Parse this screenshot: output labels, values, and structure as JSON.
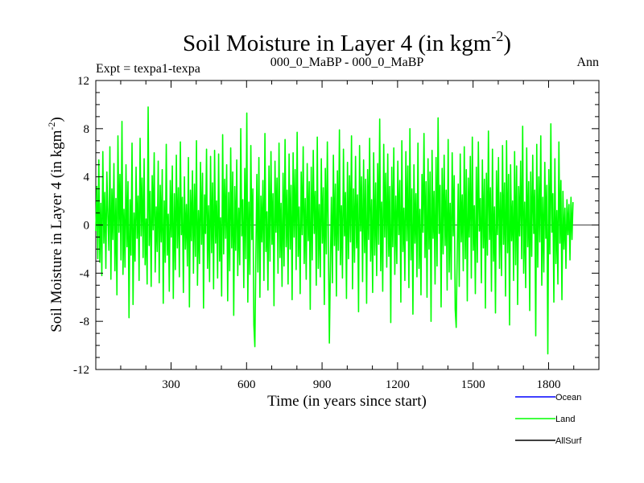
{
  "chart_data": {
    "type": "line",
    "title": "Soil Moisture in Layer 4 (in kgm",
    "title_superscript": "-2",
    "title_close": ")",
    "subtitle_left": "Expt = texpa1-texpa",
    "subtitle_center": "000_0_MaBP - 000_0_MaBP",
    "subtitle_right": "Ann",
    "xlabel": "Time (in years since start)",
    "ylabel": "Soil Moisture in Layer 4 (in kgm",
    "ylabel_superscript": "-2",
    "ylabel_close": ")",
    "xlim": [
      1,
      2000
    ],
    "ylim": [
      -12,
      12
    ],
    "xticks": [
      300,
      600,
      900,
      1200,
      1500,
      1800
    ],
    "yticks": [
      -12,
      -8,
      -4,
      0,
      4,
      8,
      12
    ],
    "zero_line": true,
    "grid": false,
    "legend_placement": "bottom-right",
    "series": [
      {
        "name": "Ocean",
        "color": "#0000ff",
        "values": []
      },
      {
        "name": "Land",
        "color": "#00ff00",
        "x_start": 1,
        "x_step": 4,
        "values": [
          -0.5,
          3.2,
          -2.8,
          5.4,
          -3.1,
          1.8,
          -4.2,
          6.1,
          -1.5,
          2.7,
          -3.6,
          4.4,
          0.8,
          -2.1,
          6.5,
          -4.5,
          3.0,
          -1.2,
          5.1,
          -3.8,
          2.2,
          -5.8,
          7.4,
          -0.6,
          4.2,
          -2.9,
          8.6,
          -4.1,
          1.3,
          -3.5,
          5.0,
          -1.8,
          3.6,
          -7.7,
          2.1,
          -2.5,
          6.8,
          -6.6,
          1.0,
          -3.0,
          4.8,
          -1.1,
          2.4,
          -4.6,
          7.2,
          -0.9,
          3.9,
          -2.7,
          5.5,
          -3.3,
          0.5,
          -4.9,
          9.8,
          -1.7,
          2.8,
          -5.1,
          4.1,
          -0.4,
          6.0,
          -3.9,
          1.5,
          -2.2,
          5.3,
          -4.8,
          3.3,
          -1.4,
          4.6,
          -6.5,
          2.0,
          -3.1,
          6.7,
          -2.5,
          0.9,
          -5.5,
          3.7,
          -1.0,
          4.9,
          -6.1,
          2.6,
          -3.7,
          5.8,
          -1.9,
          3.1,
          -4.3,
          6.9,
          -0.8,
          2.3,
          -5.6,
          4.0,
          -2.0,
          1.7,
          -3.4,
          5.6,
          -6.8,
          2.9,
          -1.3,
          4.5,
          -4.0,
          3.4,
          -2.6,
          7.0,
          -5.0,
          1.2,
          -3.2,
          5.2,
          -1.6,
          4.3,
          -6.9,
          2.5,
          -0.7,
          6.3,
          -3.6,
          1.6,
          -4.7,
          5.7,
          -2.3,
          3.5,
          -5.3,
          6.2,
          -1.5,
          2.0,
          -4.4,
          5.9,
          -3.0,
          0.6,
          -5.9,
          7.5,
          -2.4,
          3.8,
          -1.1,
          5.0,
          -6.3,
          2.7,
          -3.8,
          6.4,
          -1.9,
          4.4,
          -7.5,
          3.2,
          -2.1,
          5.4,
          -4.2,
          1.4,
          -3.3,
          8.0,
          -0.9,
          2.1,
          -5.2,
          4.7,
          -2.8,
          9.3,
          -6.4,
          1.9,
          -4.1,
          6.6,
          -1.2,
          3.0,
          -8.3,
          -10.1,
          -2.5,
          4.2,
          -3.9,
          5.6,
          -6.0,
          2.4,
          -1.4,
          3.7,
          -4.6,
          7.6,
          -2.2,
          1.1,
          -5.4,
          4.9,
          -3.0,
          6.1,
          -1.6,
          2.6,
          -6.7,
          5.3,
          -0.6,
          3.9,
          -4.0,
          6.8,
          -2.7,
          1.8,
          -5.1,
          4.3,
          -3.4,
          7.1,
          -1.8,
          2.9,
          -4.9,
          5.9,
          -2.0,
          3.3,
          -6.2,
          6.0,
          -1.0,
          4.6,
          -3.7,
          7.7,
          -2.6,
          1.5,
          -5.7,
          4.4,
          -0.8,
          6.5,
          -3.2,
          2.2,
          -4.5,
          5.1,
          -1.3,
          3.6,
          -7.0,
          4.8,
          -2.9,
          6.2,
          -0.7,
          2.8,
          -5.0,
          7.3,
          -3.6,
          1.7,
          -4.3,
          5.5,
          -1.5,
          3.1,
          -6.6,
          4.7,
          -2.4,
          6.9,
          -1.1,
          -9.8,
          -3.5,
          2.3,
          -4.8,
          5.8,
          -1.7,
          3.4,
          -5.9,
          4.5,
          -2.1,
          7.9,
          -3.3,
          1.6,
          -4.4,
          6.3,
          -0.9,
          2.7,
          -6.1,
          5.2,
          -2.8,
          4.1,
          -1.4,
          7.4,
          -5.3,
          3.0,
          -3.1,
          5.7,
          -1.9,
          2.5,
          -7.2,
          6.6,
          -0.5,
          4.0,
          -4.7,
          5.4,
          -2.3,
          3.8,
          -6.5,
          4.6,
          -1.2,
          7.2,
          -3.0,
          2.1,
          -5.6,
          6.0,
          -2.5,
          3.5,
          -4.2,
          5.1,
          -1.6,
          8.8,
          -3.8,
          1.9,
          -5.5,
          6.7,
          -1.0,
          4.3,
          -3.5,
          5.9,
          -2.6,
          3.2,
          -8.1,
          4.8,
          -1.8,
          6.4,
          -4.1,
          2.4,
          -3.2,
          5.3,
          -0.8,
          3.7,
          -6.4,
          7.0,
          -2.2,
          1.4,
          -4.6,
          6.1,
          -1.3,
          4.9,
          -5.2,
          8.0,
          -2.9,
          3.0,
          -7.4,
          5.0,
          -1.5,
          2.6,
          -4.3,
          6.8,
          -3.6,
          1.3,
          -5.8,
          4.2,
          -0.6,
          7.6,
          -2.7,
          3.6,
          -6.0,
          5.5,
          -2.0,
          4.4,
          -8.0,
          6.2,
          -1.1,
          2.8,
          -4.9,
          5.6,
          -3.4,
          8.9,
          -0.7,
          3.3,
          -6.8,
          4.7,
          -2.4,
          5.8,
          -1.7,
          2.9,
          -5.4,
          7.1,
          -3.9,
          1.8,
          -4.5,
          6.0,
          -0.9,
          4.1,
          -7.0,
          -8.5,
          -2.2,
          3.4,
          -5.1,
          5.9,
          -1.4,
          2.5,
          -3.8,
          6.5,
          -2.8,
          4.6,
          -6.3,
          3.9,
          -1.0,
          5.7,
          -4.4,
          7.3,
          -2.1,
          1.6,
          -5.7,
          4.8,
          -3.1,
          6.9,
          -0.5,
          2.2,
          -4.8,
          5.4,
          -1.9,
          3.8,
          -6.9,
          4.3,
          -2.5,
          7.8,
          -1.2,
          3.1,
          -5.5,
          6.3,
          -3.0,
          1.5,
          -7.3,
          4.5,
          -0.8,
          5.6,
          -3.6,
          2.7,
          -4.2,
          6.6,
          -1.6,
          3.5,
          -5.9,
          7.0,
          -2.3,
          4.2,
          -8.3,
          5.0,
          -1.3,
          2.0,
          -4.6,
          6.1,
          -3.3,
          4.9,
          -6.6,
          3.2,
          -0.9,
          5.3,
          -2.8,
          8.2,
          -4.0,
          1.9,
          -5.2,
          6.4,
          -1.8,
          3.6,
          -7.1,
          4.4,
          -2.6,
          5.8,
          -0.7,
          2.9,
          -9.2,
          6.7,
          -3.5,
          4.0,
          -1.4,
          7.4,
          -5.0,
          2.3,
          -3.9,
          5.2,
          -1.1,
          3.3,
          -10.7,
          4.6,
          -2.4,
          8.4,
          -0.6,
          2.6,
          -6.4,
          5.5,
          -3.2,
          1.2,
          -4.9,
          6.9,
          -1.5,
          3.7,
          -6.2,
          2.8,
          -2.0,
          1.4,
          -3.6,
          2.1,
          -0.8,
          1.7,
          -2.9,
          2.3,
          -1.2,
          1.9
        ]
      },
      {
        "name": "AllSurf",
        "color": "#000000",
        "values": []
      }
    ]
  }
}
